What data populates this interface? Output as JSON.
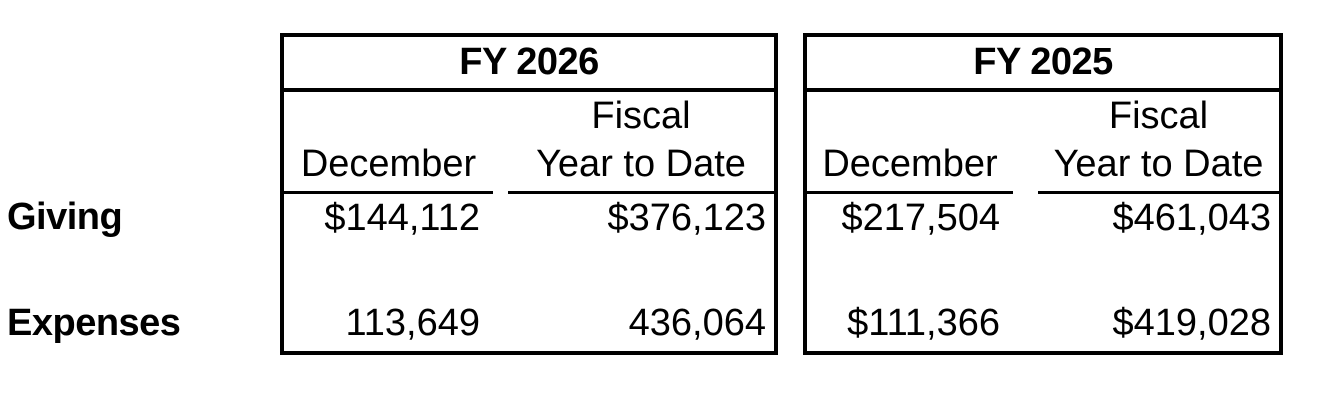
{
  "page": {
    "background": "#ffffff",
    "text_color": "#000000",
    "border_color": "#000000",
    "description": "Financial summary report comparing giving and expenses for two fiscal years"
  },
  "row_labels": [
    "Giving",
    "Expenses"
  ],
  "tables": [
    {
      "title": "FY 2026",
      "columns": [
        {
          "lines": [
            "December"
          ]
        },
        {
          "lines": [
            "Fiscal",
            "Year to Date"
          ]
        }
      ],
      "rows": [
        {
          "label": "Giving",
          "december": "$144,112",
          "fiscal_ytd": "$376,123"
        },
        {
          "label": "Expenses",
          "december": "113,649",
          "fiscal_ytd": "436,064"
        }
      ]
    },
    {
      "title": "FY 2025",
      "columns": [
        {
          "lines": [
            "December"
          ]
        },
        {
          "lines": [
            "Fiscal",
            "Year to Date"
          ]
        }
      ],
      "rows": [
        {
          "label": "Giving",
          "december": "$217,504",
          "fiscal_ytd": "$461,043"
        },
        {
          "label": "Expenses",
          "december": "$111,366",
          "fiscal_ytd": "$419,028"
        }
      ]
    }
  ]
}
